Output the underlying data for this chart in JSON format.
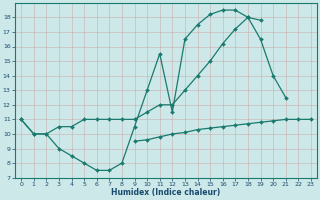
{
  "xlabel": "Humidex (Indice chaleur)",
  "bg_color": "#cce8e8",
  "line_color": "#1a7a6e",
  "grid_color": "#b8d8d8",
  "xlim": [
    -0.5,
    23.5
  ],
  "ylim": [
    7,
    19
  ],
  "yticks": [
    7,
    8,
    9,
    10,
    11,
    12,
    13,
    14,
    15,
    16,
    17,
    18
  ],
  "xticks": [
    0,
    1,
    2,
    3,
    4,
    5,
    6,
    7,
    8,
    9,
    10,
    11,
    12,
    13,
    14,
    15,
    16,
    17,
    18,
    19,
    20,
    21,
    22,
    23
  ],
  "line1_x": [
    0,
    1,
    2,
    3,
    4,
    5,
    6,
    7,
    8,
    9,
    10,
    11,
    12,
    13,
    14,
    15,
    16,
    17,
    18,
    19,
    20,
    21,
    22,
    23
  ],
  "line1_y": [
    11,
    10,
    10,
    9,
    8.5,
    8,
    7.5,
    7.5,
    8,
    10.5,
    13,
    15.5,
    11.5,
    16.5,
    17.5,
    18.2,
    18.5,
    18.5,
    18,
    17.8,
    null,
    null,
    null,
    null
  ],
  "line2_x": [
    0,
    1,
    2,
    3,
    4,
    5,
    6,
    7,
    8,
    9,
    10,
    11,
    12,
    13,
    14,
    15,
    16,
    17,
    18,
    19,
    20,
    21,
    22,
    23
  ],
  "line2_y": [
    11,
    10,
    10,
    10.5,
    10.5,
    11,
    11,
    11,
    11,
    11,
    11.5,
    12,
    12,
    13,
    14,
    15,
    16.2,
    17.2,
    18,
    16.5,
    14,
    12.5,
    null,
    null
  ],
  "line3_x": [
    0,
    1,
    2,
    3,
    4,
    5,
    6,
    7,
    8,
    9,
    10,
    11,
    12,
    13,
    14,
    15,
    16,
    17,
    18,
    19,
    20,
    21,
    22,
    23
  ],
  "line3_y": [
    null,
    null,
    null,
    null,
    null,
    null,
    null,
    null,
    null,
    9.5,
    9.6,
    9.8,
    10.0,
    10.1,
    10.3,
    10.4,
    10.5,
    10.6,
    10.7,
    10.8,
    10.9,
    11.0,
    11.0,
    11.0
  ]
}
